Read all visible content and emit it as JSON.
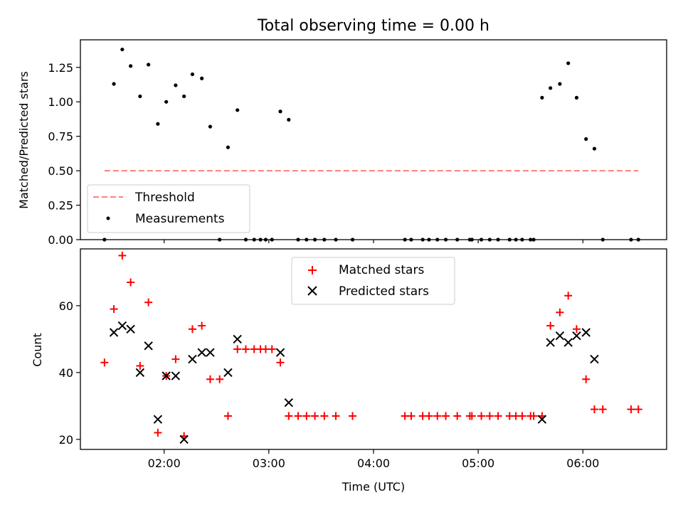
{
  "title": "Total observing time = 0.00 h",
  "chart_data": [
    {
      "type": "scatter",
      "ylabel": "Matched/Predicted stars",
      "xlim": [
        1.2,
        6.8
      ],
      "ylim": [
        0,
        1.45
      ],
      "yticks": [
        0,
        0.25,
        0.5,
        0.75,
        1.0,
        1.25
      ],
      "ytick_labels": [
        "0.00",
        "0.25",
        "0.50",
        "0.75",
        "1.00",
        "1.25"
      ],
      "threshold": {
        "name": "Threshold",
        "value": 0.5,
        "x_range": [
          1.43,
          6.53
        ],
        "color": "#ff7f7f"
      },
      "series": [
        {
          "name": "Measurements",
          "color": "#000000",
          "points": [
            [
              1.43,
              0
            ],
            [
              1.52,
              1.13
            ],
            [
              1.6,
              1.38
            ],
            [
              1.68,
              1.26
            ],
            [
              1.77,
              1.04
            ],
            [
              1.85,
              1.27
            ],
            [
              1.94,
              0.84
            ],
            [
              2.02,
              1.0
            ],
            [
              2.11,
              1.12
            ],
            [
              2.19,
              1.04
            ],
            [
              2.27,
              1.2
            ],
            [
              2.36,
              1.17
            ],
            [
              2.44,
              0.82
            ],
            [
              2.53,
              0
            ],
            [
              2.61,
              0.67
            ],
            [
              2.7,
              0.94
            ],
            [
              2.78,
              0
            ],
            [
              2.86,
              0
            ],
            [
              2.92,
              0
            ],
            [
              2.97,
              0
            ],
            [
              3.03,
              0
            ],
            [
              3.11,
              0.93
            ],
            [
              3.19,
              0.87
            ],
            [
              3.28,
              0
            ],
            [
              3.36,
              0
            ],
            [
              3.44,
              0
            ],
            [
              3.53,
              0
            ],
            [
              3.64,
              0
            ],
            [
              3.8,
              0
            ],
            [
              4.3,
              0
            ],
            [
              4.36,
              0
            ],
            [
              4.47,
              0
            ],
            [
              4.53,
              0
            ],
            [
              4.61,
              0
            ],
            [
              4.69,
              0
            ],
            [
              4.8,
              0
            ],
            [
              4.92,
              0
            ],
            [
              4.94,
              0
            ],
            [
              5.03,
              0
            ],
            [
              5.11,
              0
            ],
            [
              5.19,
              0
            ],
            [
              5.3,
              0
            ],
            [
              5.36,
              0
            ],
            [
              5.42,
              0
            ],
            [
              5.5,
              0
            ],
            [
              5.53,
              0
            ],
            [
              5.61,
              1.03
            ],
            [
              5.69,
              1.1
            ],
            [
              5.78,
              1.13
            ],
            [
              5.86,
              1.28
            ],
            [
              5.94,
              1.03
            ],
            [
              6.03,
              0.73
            ],
            [
              6.11,
              0.66
            ],
            [
              6.19,
              0
            ],
            [
              6.46,
              0
            ],
            [
              6.53,
              0
            ]
          ]
        }
      ],
      "legend": {
        "position": "lower-left",
        "entries": [
          "Threshold",
          "Measurements"
        ]
      }
    },
    {
      "type": "scatter",
      "xlabel": "Time (UTC)",
      "ylabel": "Count",
      "xlim": [
        1.2,
        6.8
      ],
      "ylim": [
        17,
        77
      ],
      "yticks": [
        20,
        40,
        60
      ],
      "ytick_labels": [
        "20",
        "40",
        "60"
      ],
      "xticks": [
        2,
        3,
        4,
        5,
        6
      ],
      "xtick_labels": [
        "02:00",
        "03:00",
        "04:00",
        "05:00",
        "06:00"
      ],
      "series": [
        {
          "name": "Matched stars",
          "marker": "plus",
          "color": "#ff0000",
          "points": [
            [
              1.43,
              43
            ],
            [
              1.52,
              59
            ],
            [
              1.6,
              75
            ],
            [
              1.68,
              67
            ],
            [
              1.77,
              42
            ],
            [
              1.85,
              61
            ],
            [
              1.94,
              22
            ],
            [
              2.02,
              39
            ],
            [
              2.11,
              44
            ],
            [
              2.19,
              21
            ],
            [
              2.27,
              53
            ],
            [
              2.36,
              54
            ],
            [
              2.44,
              38
            ],
            [
              2.53,
              38
            ],
            [
              2.61,
              27
            ],
            [
              2.7,
              47
            ],
            [
              2.78,
              47
            ],
            [
              2.86,
              47
            ],
            [
              2.92,
              47
            ],
            [
              2.97,
              47
            ],
            [
              3.03,
              47
            ],
            [
              3.11,
              43
            ],
            [
              3.19,
              27
            ],
            [
              3.28,
              27
            ],
            [
              3.36,
              27
            ],
            [
              3.44,
              27
            ],
            [
              3.53,
              27
            ],
            [
              3.64,
              27
            ],
            [
              3.8,
              27
            ],
            [
              4.3,
              27
            ],
            [
              4.36,
              27
            ],
            [
              4.47,
              27
            ],
            [
              4.53,
              27
            ],
            [
              4.61,
              27
            ],
            [
              4.69,
              27
            ],
            [
              4.8,
              27
            ],
            [
              4.92,
              27
            ],
            [
              4.94,
              27
            ],
            [
              5.03,
              27
            ],
            [
              5.11,
              27
            ],
            [
              5.19,
              27
            ],
            [
              5.3,
              27
            ],
            [
              5.36,
              27
            ],
            [
              5.42,
              27
            ],
            [
              5.5,
              27
            ],
            [
              5.53,
              27
            ],
            [
              5.61,
              27
            ],
            [
              5.69,
              54
            ],
            [
              5.78,
              58
            ],
            [
              5.86,
              63
            ],
            [
              5.94,
              53
            ],
            [
              6.03,
              38
            ],
            [
              6.11,
              29
            ],
            [
              6.19,
              29
            ],
            [
              6.46,
              29
            ],
            [
              6.53,
              29
            ]
          ]
        },
        {
          "name": "Predicted stars",
          "marker": "x",
          "color": "#000000",
          "points": [
            [
              1.52,
              52
            ],
            [
              1.6,
              54
            ],
            [
              1.68,
              53
            ],
            [
              1.77,
              40
            ],
            [
              1.85,
              48
            ],
            [
              1.94,
              26
            ],
            [
              2.02,
              39
            ],
            [
              2.11,
              39
            ],
            [
              2.19,
              20
            ],
            [
              2.27,
              44
            ],
            [
              2.36,
              46
            ],
            [
              2.44,
              46
            ],
            [
              2.61,
              40
            ],
            [
              2.7,
              50
            ],
            [
              3.11,
              46
            ],
            [
              3.19,
              31
            ],
            [
              5.61,
              26
            ],
            [
              5.69,
              49
            ],
            [
              5.78,
              51
            ],
            [
              5.86,
              49
            ],
            [
              5.94,
              51
            ],
            [
              6.03,
              52
            ],
            [
              6.11,
              44
            ]
          ]
        }
      ],
      "legend": {
        "position": "upper-center",
        "entries": [
          "Matched stars",
          "Predicted stars"
        ]
      }
    }
  ]
}
